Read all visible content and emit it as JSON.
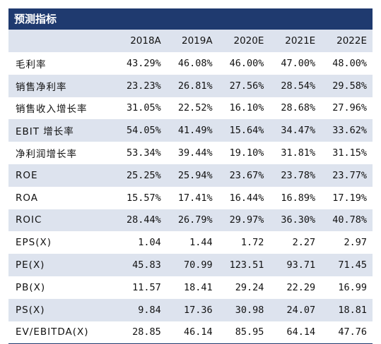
{
  "title": "预测指标",
  "columns": [
    "2018A",
    "2019A",
    "2020E",
    "2021E",
    "2022E"
  ],
  "rows": [
    {
      "label": "毛利率",
      "values": [
        "43.29%",
        "46.08%",
        "46.00%",
        "47.00%",
        "48.00%"
      ]
    },
    {
      "label": "销售净利率",
      "values": [
        "23.23%",
        "26.81%",
        "27.56%",
        "28.54%",
        "29.58%"
      ]
    },
    {
      "label": "销售收入增长率",
      "values": [
        "31.05%",
        "22.52%",
        "16.10%",
        "28.68%",
        "27.96%"
      ]
    },
    {
      "label": "EBIT 增长率",
      "values": [
        "54.05%",
        "41.49%",
        "15.64%",
        "34.47%",
        "33.62%"
      ]
    },
    {
      "label": "净利润增长率",
      "values": [
        "53.34%",
        "39.44%",
        "19.10%",
        "31.81%",
        "31.15%"
      ]
    },
    {
      "label": "ROE",
      "values": [
        "25.25%",
        "25.94%",
        "23.67%",
        "23.78%",
        "23.77%"
      ]
    },
    {
      "label": "ROA",
      "values": [
        "15.57%",
        "17.41%",
        "16.44%",
        "16.89%",
        "17.19%"
      ]
    },
    {
      "label": "ROIC",
      "values": [
        "28.44%",
        "26.79%",
        "29.97%",
        "36.30%",
        "40.78%"
      ]
    },
    {
      "label": "EPS(X)",
      "values": [
        "1.04",
        "1.44",
        "1.72",
        "2.27",
        "2.97"
      ]
    },
    {
      "label": "PE(X)",
      "values": [
        "45.83",
        "70.99",
        "123.51",
        "93.71",
        "71.45"
      ]
    },
    {
      "label": "PB(X)",
      "values": [
        "11.57",
        "18.41",
        "29.24",
        "22.29",
        "16.99"
      ]
    },
    {
      "label": "PS(X)",
      "values": [
        "9.84",
        "17.36",
        "30.98",
        "24.07",
        "18.81"
      ]
    },
    {
      "label": "EV/EBITDA(X)",
      "values": [
        "28.85",
        "46.14",
        "85.95",
        "64.14",
        "47.76"
      ]
    }
  ]
}
